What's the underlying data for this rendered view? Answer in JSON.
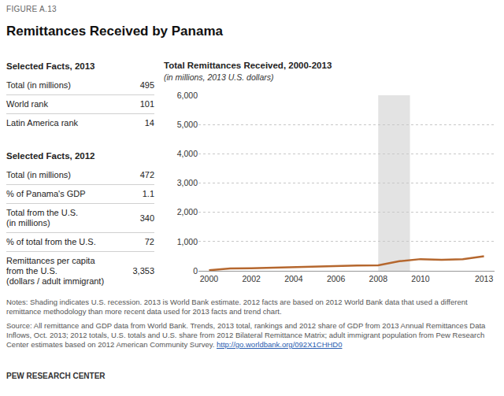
{
  "figure_label": "FIGURE A.13",
  "title": "Remittances Received by Panama",
  "facts": [
    {
      "heading": "Selected Facts, 2013",
      "rows": [
        {
          "label": [
            "Total (in millions)"
          ],
          "value": 495
        },
        {
          "label": [
            "World rank"
          ],
          "value": 101
        },
        {
          "label": [
            "Latin America rank"
          ],
          "value": 14
        }
      ]
    },
    {
      "heading": "Selected Facts, 2012",
      "rows": [
        {
          "label": [
            "Total (in millions)"
          ],
          "value": 472
        },
        {
          "label": [
            "% of Panama's GDP"
          ],
          "value": 1.1
        },
        {
          "label": [
            "Total from the U.S.",
            "(in millions)"
          ],
          "value": 340
        },
        {
          "label": [
            "% of total from the U.S."
          ],
          "value": 72
        },
        {
          "label": [
            "Remittances per capita",
            "from the U.S.",
            "(dollars / adult immigrant)"
          ],
          "value": {
            "value": 3353,
            "label": "3,353"
          }
        }
      ]
    }
  ],
  "chart_data": {
    "type": "line",
    "title": "Total Remittances Received, 2000-2013",
    "subtitle": "(in millions, 2013 U.S. dollars)",
    "x": [
      2000,
      2001,
      2002,
      2003,
      2004,
      2005,
      2006,
      2007,
      2008,
      2009,
      2010,
      2011,
      2012,
      2013
    ],
    "values": [
      20,
      80,
      90,
      110,
      120,
      140,
      160,
      180,
      190,
      330,
      400,
      380,
      400,
      495
    ],
    "color": "#b5672e",
    "xlim": [
      1999.5,
      2013.5
    ],
    "xticks": [
      2000,
      2002,
      2004,
      2006,
      2008,
      2010,
      2013
    ],
    "ylim": [
      0,
      6000
    ],
    "yticks": [
      0,
      {
        "value": 1000,
        "label": "1,000"
      },
      {
        "value": 2000,
        "label": "2,000"
      },
      {
        "value": 3000,
        "label": "3,000"
      },
      {
        "value": 4000,
        "label": "4,000"
      },
      {
        "value": 5000,
        "label": "5,000"
      },
      {
        "value": 6000,
        "label": "6,000"
      }
    ],
    "grid": true,
    "recession": [
      2008,
      2009.5
    ]
  },
  "notes": "Notes: Shading indicates U.S. recession. 2013 is World Bank estimate. 2012 facts are based on 2012 World Bank data that used a different remittance methodology than more recent data used for 2013 facts and trend chart.",
  "source": "Source: All remittance and GDP data from World Bank. Trends, 2013 total, rankings and 2012 share of GDP from 2013 Annual Remittances Data Inflows, Oct. 2013; 2012 totals, U.S. totals and U.S. share from 2012 Bilateral Remittance Matrix; adult immigrant population from Pew Research Center estimates based on 2012 American Community Survey.",
  "source_link": "http://go.worldbank.org/092X1CHHD0",
  "footer": "PEW RESEARCH CENTER"
}
